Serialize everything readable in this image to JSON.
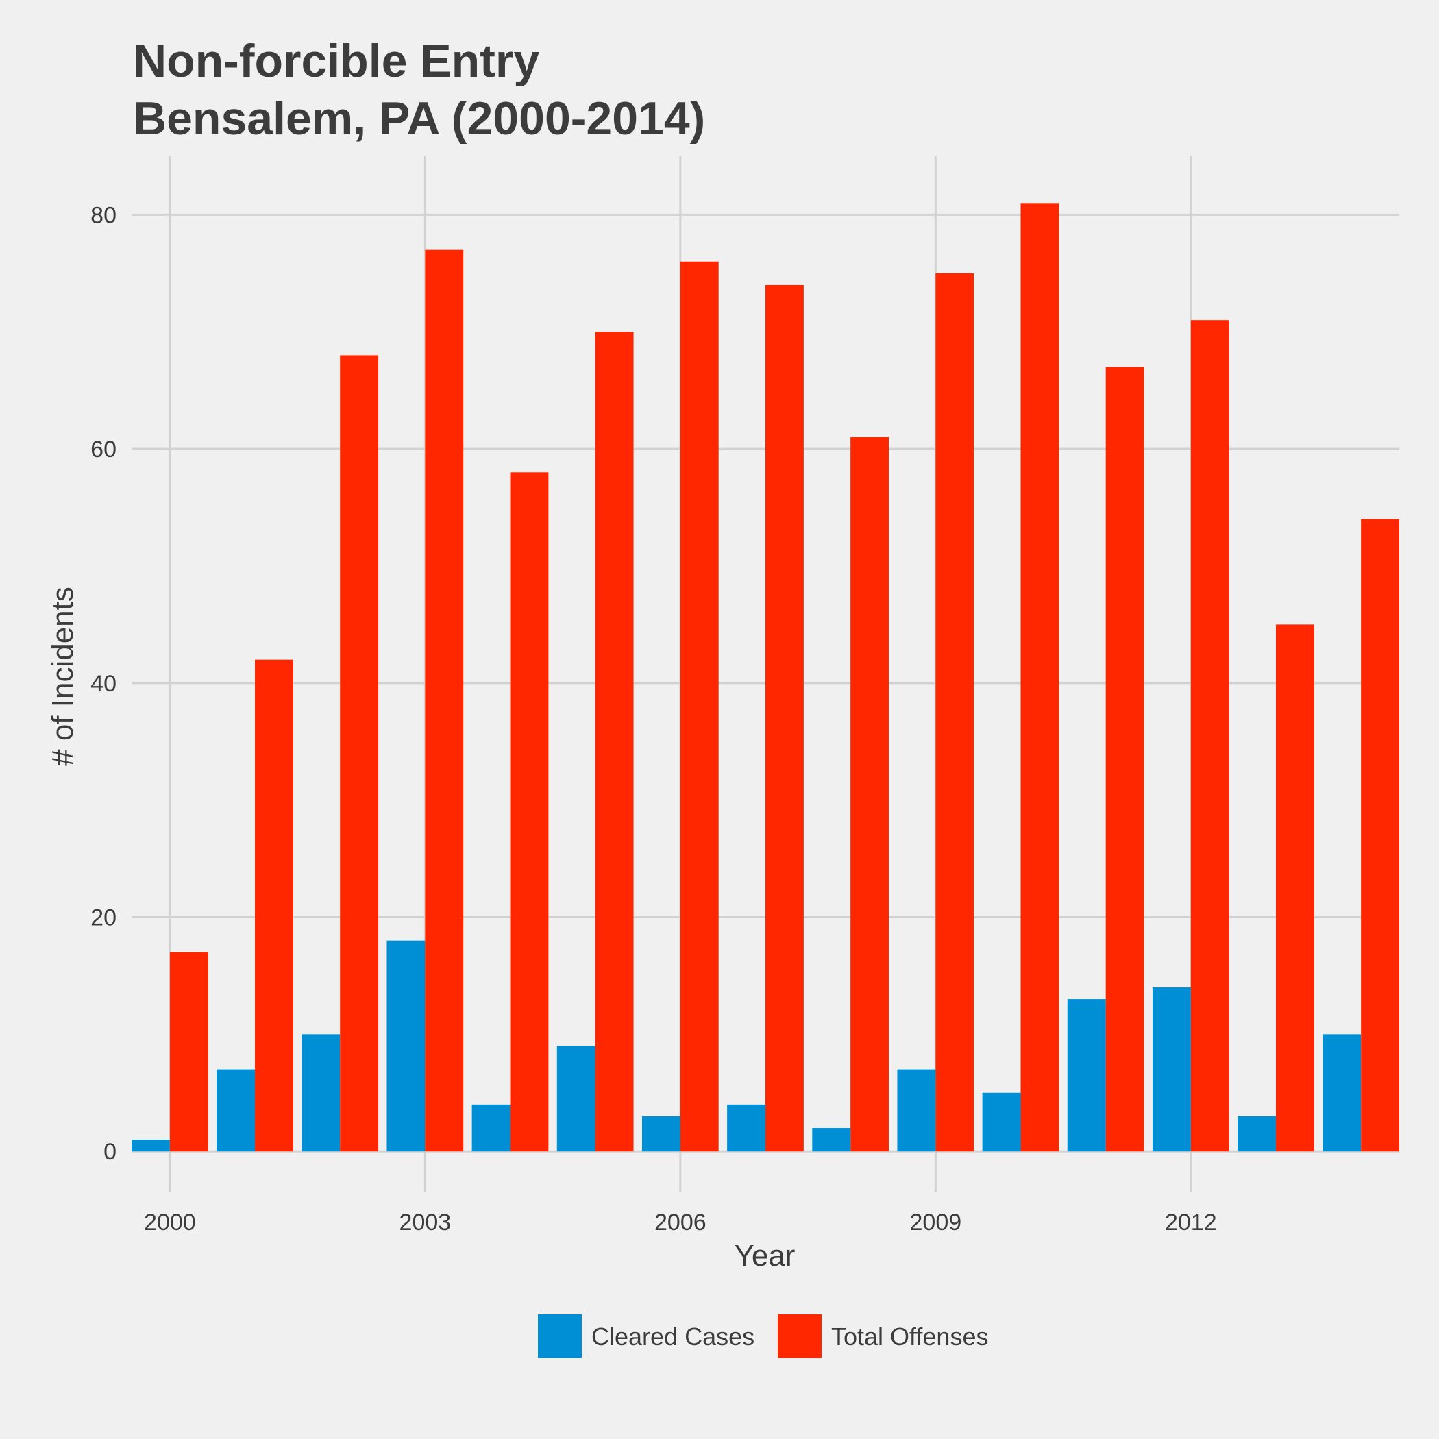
{
  "chart_data": {
    "type": "bar",
    "title_lines": [
      "Non-forcible Entry",
      "Bensalem, PA (2000-2014)"
    ],
    "xlabel": "Year",
    "ylabel": "# of Incidents",
    "x": [
      2000,
      2001,
      2002,
      2003,
      2004,
      2005,
      2006,
      2007,
      2008,
      2009,
      2010,
      2011,
      2012,
      2013,
      2014
    ],
    "x_ticks": [
      2000,
      2003,
      2006,
      2009,
      2012
    ],
    "y_ticks": [
      0,
      20,
      40,
      60,
      80
    ],
    "ylim": [
      -3.5,
      85
    ],
    "xlim": [
      1999.55,
      2014.45
    ],
    "grid": true,
    "legend_position": "bottom",
    "series": [
      {
        "name": "Cleared Cases",
        "color": "#008fd5",
        "values": [
          1,
          7,
          10,
          18,
          4,
          9,
          3,
          4,
          2,
          7,
          5,
          13,
          14,
          3,
          10
        ]
      },
      {
        "name": "Total Offenses",
        "color": "#ff2700",
        "values": [
          17,
          42,
          68,
          77,
          58,
          70,
          76,
          74,
          61,
          75,
          81,
          67,
          71,
          45,
          54
        ]
      }
    ]
  },
  "colors": {
    "background": "#f0f0f0",
    "grid": "#d2d2d2",
    "text": "#3c3c3c"
  }
}
